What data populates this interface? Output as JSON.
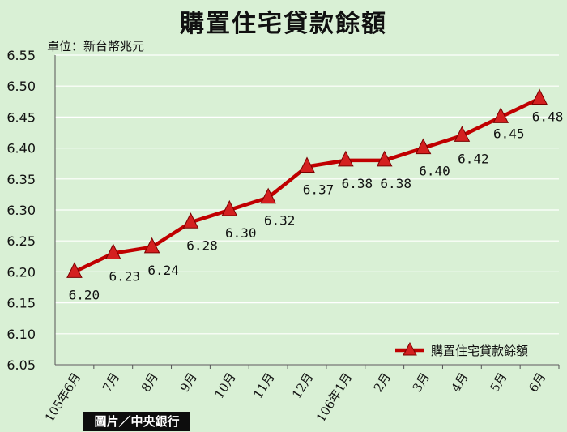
{
  "title": "購置住宅貸款餘額",
  "unit": "單位：新台幣兆元",
  "credit": "圖片／中央銀行",
  "colors": {
    "background": "#d9f0d5",
    "line": "#c00000",
    "marker": "#d42020",
    "grid": "#ffffff"
  },
  "chart_data": {
    "type": "line",
    "title": "購置住宅貸款餘額",
    "ylabel": "單位：新台幣兆元",
    "xlabel": "",
    "categories": [
      "105年6月",
      "7月",
      "8月",
      "9月",
      "10月",
      "11月",
      "12月",
      "106年1月",
      "2月",
      "3月",
      "4月",
      "5月",
      "6月"
    ],
    "series": [
      {
        "name": "購置住宅貸款餘額",
        "values": [
          6.2,
          6.23,
          6.24,
          6.28,
          6.3,
          6.32,
          6.37,
          6.38,
          6.38,
          6.4,
          6.42,
          6.45,
          6.48
        ],
        "labels": [
          "6.20",
          "6.23",
          "6.24",
          "6.28",
          "6.30",
          "6.32",
          "6.37",
          "6.38",
          "6.38",
          "6.40",
          "6.42",
          "6.45",
          "6.48"
        ]
      }
    ],
    "yticks": [
      "6.05",
      "6.10",
      "6.15",
      "6.20",
      "6.25",
      "6.30",
      "6.35",
      "6.40",
      "6.45",
      "6.50",
      "6.55"
    ],
    "ylim": [
      6.05,
      6.55
    ],
    "grid": true,
    "legend": "bottom-right",
    "marker": "triangle"
  }
}
